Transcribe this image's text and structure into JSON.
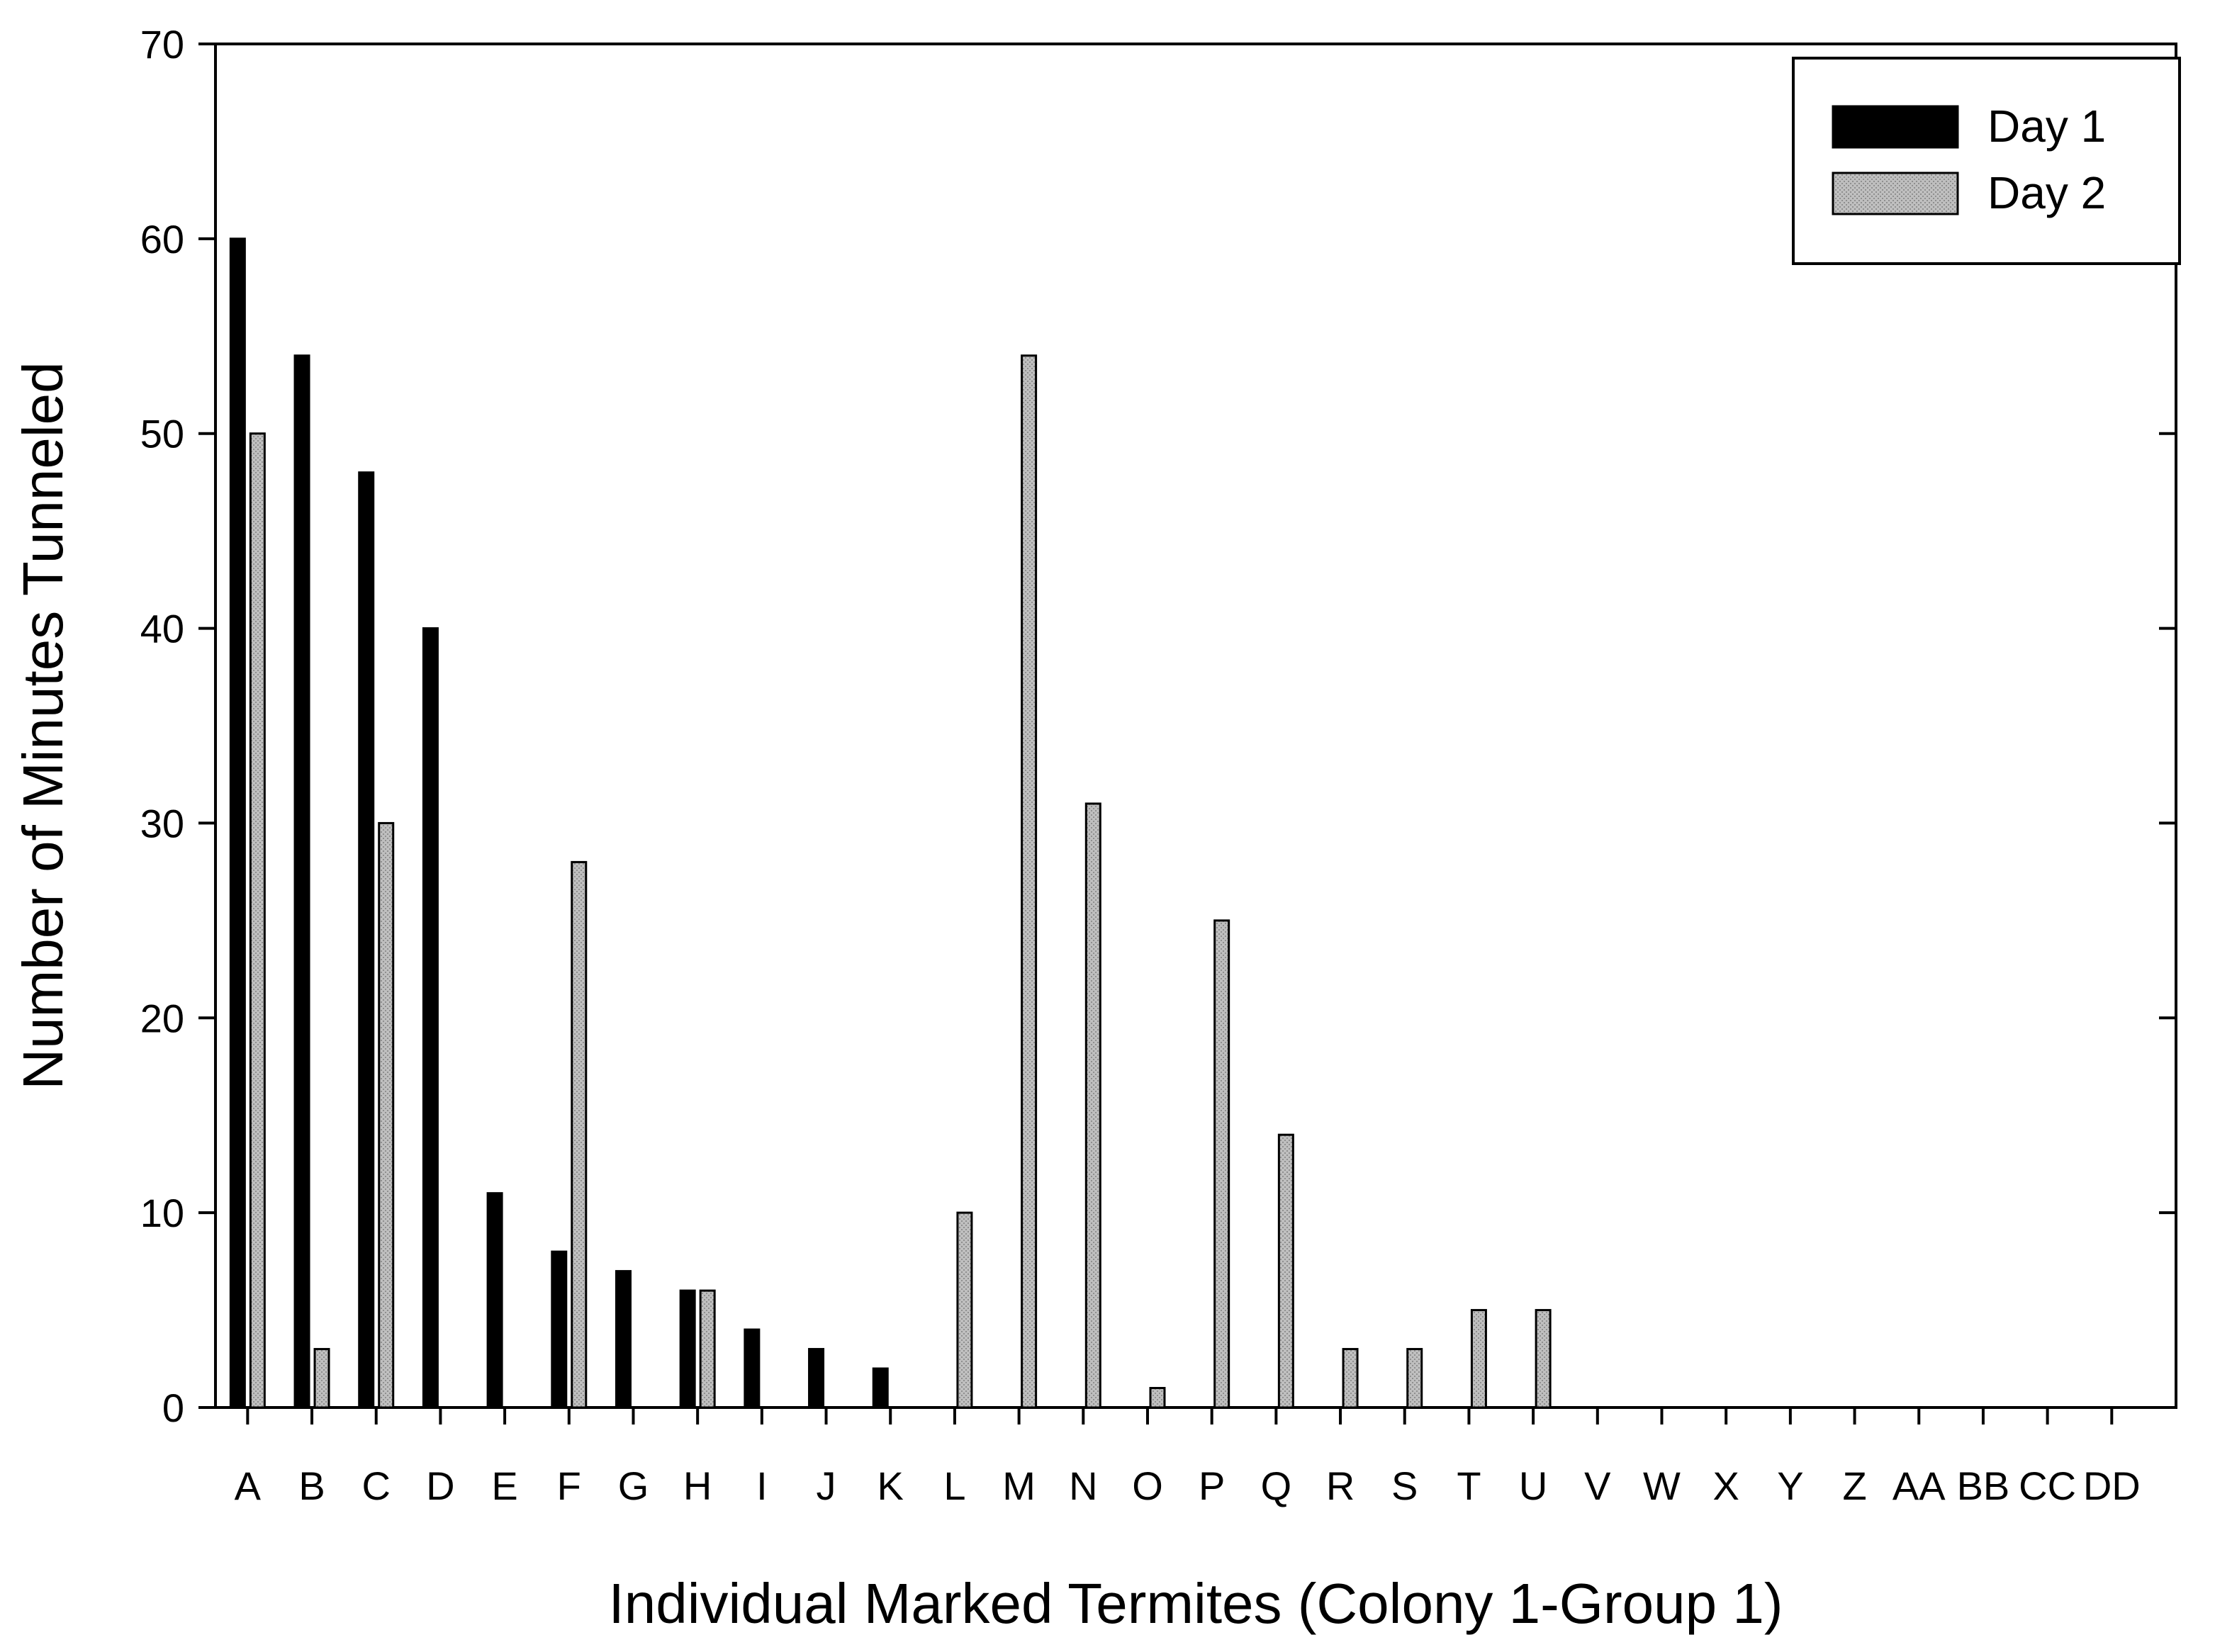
{
  "chart_data": {
    "type": "bar",
    "title": "",
    "xlabel": "Individual Marked Termites (Colony 1-Group 1)",
    "ylabel": "Number of Minutes Tunneled",
    "ylim": [
      0,
      70
    ],
    "yticks": [
      0,
      10,
      20,
      30,
      40,
      50,
      60,
      70
    ],
    "grid": false,
    "legend_position": "top-right",
    "categories": [
      "A",
      "B",
      "C",
      "D",
      "E",
      "F",
      "G",
      "H",
      "I",
      "J",
      "K",
      "L",
      "M",
      "N",
      "O",
      "P",
      "Q",
      "R",
      "S",
      "T",
      "U",
      "V",
      "W",
      "X",
      "Y",
      "Z",
      "AA",
      "BB",
      "CC",
      "DD"
    ],
    "series": [
      {
        "name": "Day 1",
        "color": "#000000",
        "values": [
          60,
          54,
          48,
          40,
          11,
          8,
          7,
          6,
          4,
          3,
          2,
          0,
          0,
          0,
          0,
          0,
          0,
          0,
          0,
          0,
          0,
          0,
          0,
          0,
          0,
          0,
          0,
          0,
          0,
          0
        ]
      },
      {
        "name": "Day 2",
        "color": "#bfbfbf",
        "values": [
          50,
          3,
          30,
          0,
          0,
          28,
          0,
          6,
          0,
          0,
          0,
          10,
          54,
          31,
          1,
          25,
          14,
          3,
          3,
          5,
          5,
          0,
          0,
          0,
          0,
          0,
          0,
          0,
          0,
          0
        ]
      }
    ]
  }
}
